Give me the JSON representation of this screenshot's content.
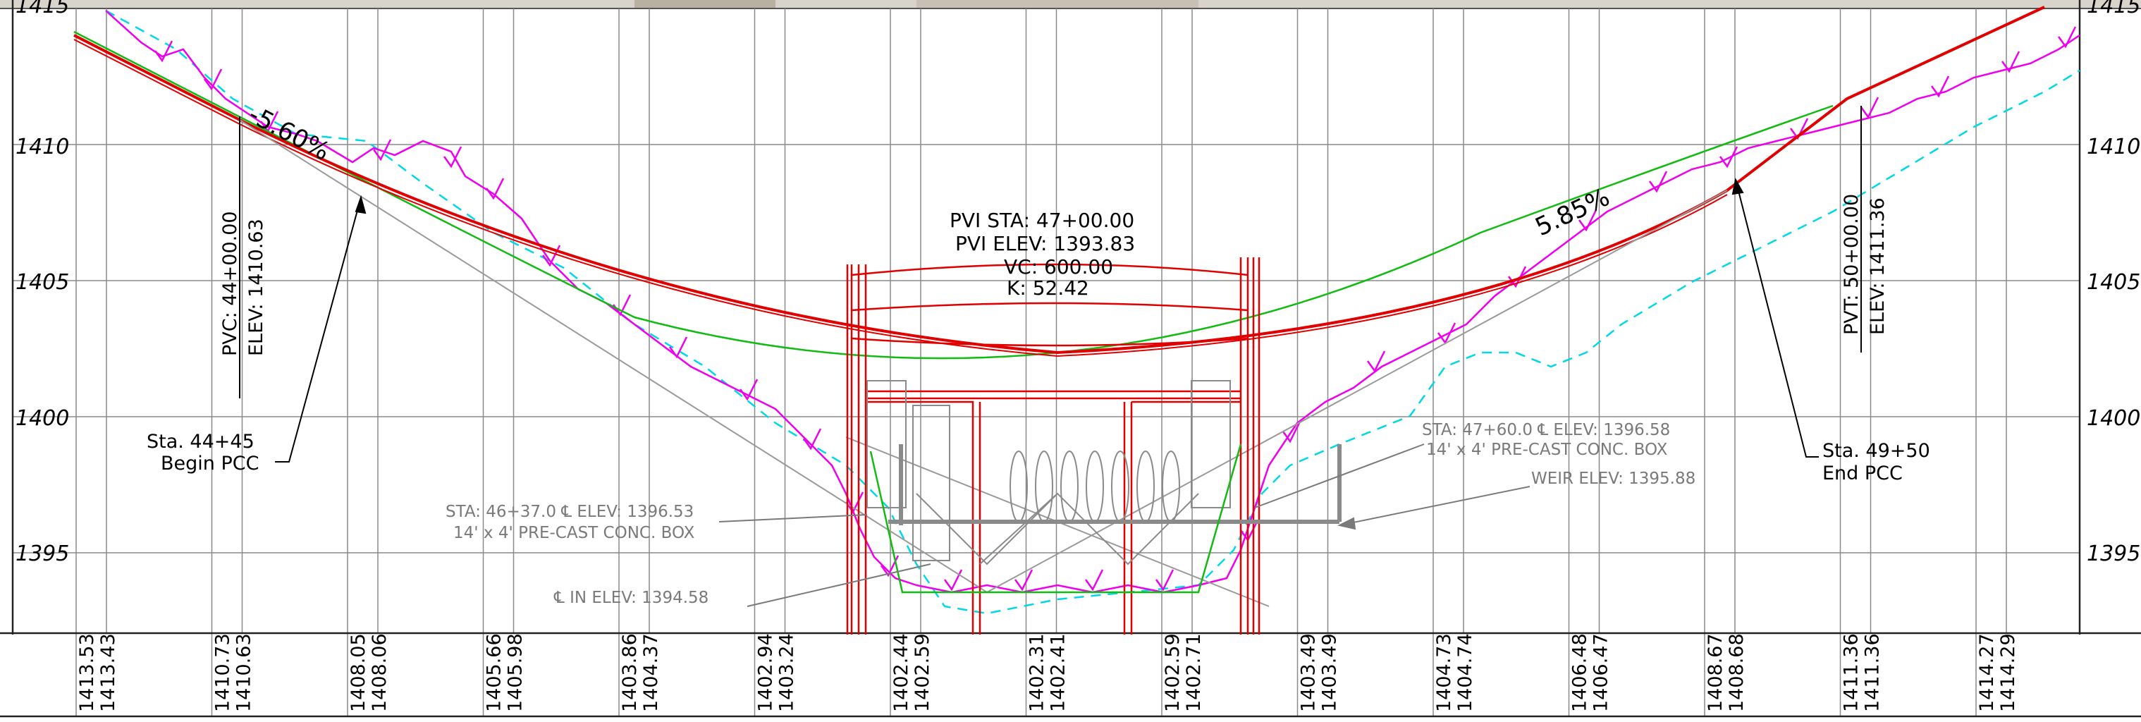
{
  "elevation_labels": [
    "1410",
    "1405",
    "1400",
    "1395"
  ],
  "top_clipped_label": "1415",
  "station_elevations": [
    [
      "1413.53",
      "1413.43"
    ],
    [
      "1410.73",
      "1410.63"
    ],
    [
      "1408.05",
      "1408.06"
    ],
    [
      "1405.66",
      "1405.98"
    ],
    [
      "1403.86",
      "1404.37"
    ],
    [
      "1402.94",
      "1403.24"
    ],
    [
      "1402.44",
      "1402.59"
    ],
    [
      "1402.31",
      "1402.41"
    ],
    [
      "1402.59",
      "1402.71"
    ],
    [
      "1403.49",
      "1403.49"
    ],
    [
      "1404.73",
      "1404.74"
    ],
    [
      "1406.48",
      "1406.47"
    ],
    [
      "1408.67",
      "1408.68"
    ],
    [
      "1411.36",
      "1411.36"
    ],
    [
      "1414.27",
      "1414.29"
    ]
  ],
  "grade_left": "-5.60%",
  "grade_right": "5.85%",
  "pvi": {
    "sta": "PVI STA:  47+00.00",
    "elev": "PVI ELEV:  1393.83",
    "vc": "VC:  600.00",
    "k": "K:  52.42"
  },
  "pvc": {
    "sta": "PVC:  44+00.00",
    "elev": "ELEV:  1410.63"
  },
  "pvt": {
    "sta": "PVT:  50+00.00",
    "elev": "ELEV:  1411.36"
  },
  "begin_pcc": {
    "line1": "Sta.  44+45",
    "line2": "Begin PCC"
  },
  "end_pcc": {
    "line1": "Sta.  49+50",
    "line2": "End PCC"
  },
  "left_box": {
    "line1": "STA:  46+37.0  ℄  ELEV:  1396.53",
    "line2": "14'  x  4'  PRE-CAST  CONC.  BOX"
  },
  "right_box": {
    "line1": "STA:  47+60.0  ℄  ELEV:  1396.58",
    "line2": "14'  x  4'  PRE-CAST  CONC.  BOX"
  },
  "weir": "WEIR  ELEV:  1395.88",
  "fl_in": "℄  IN  ELEV:  1394.58",
  "colors": {
    "profile": "#e00000",
    "existing_ground": "#11bb11",
    "ground_hatch": "#ee00ee",
    "water_line": "#00d8e8",
    "structure": "#e00000",
    "grid": "#8a8a8a",
    "grey_lines": "#9a9a9a"
  }
}
